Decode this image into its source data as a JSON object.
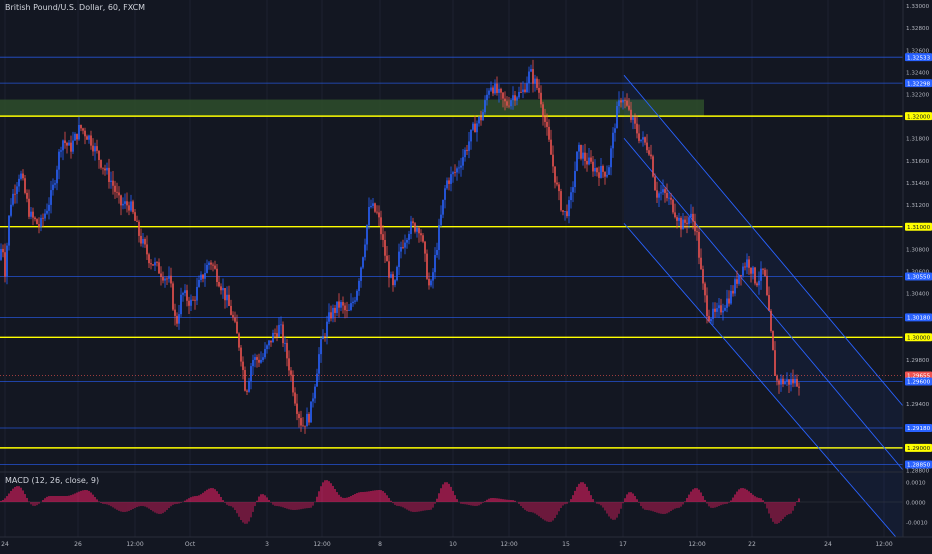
{
  "header": {
    "title": "British Pound/U.S. Dollar, 60, FXCM"
  },
  "macd": {
    "label": "MACD (12, 26, close, 9)"
  },
  "colors": {
    "background": "#131722",
    "up_candle": "#2962ff",
    "down_candle": "#ef5350",
    "horizontal_line": "#2962ff",
    "key_level": "#ffff00",
    "supply_zone": "#2e4d2a",
    "channel": "#2962ff",
    "macd_hist": "#e91e63",
    "current_price": "#ef5350"
  },
  "price_axis": {
    "labels": [
      "1.33000",
      "1.32800",
      "1.32600",
      "1.32400",
      "1.32200",
      "1.32000",
      "1.31800",
      "1.31600",
      "1.31400",
      "1.31200",
      "1.31000",
      "1.30800",
      "1.30600",
      "1.30400",
      "1.30200",
      "1.30000",
      "1.29800",
      "1.29600",
      "1.29400",
      "1.29200",
      "1.29000",
      "1.28800"
    ]
  },
  "price_tags": [
    {
      "text": "1.32533",
      "kind": "blue"
    },
    {
      "text": "1.32298",
      "kind": "blue"
    },
    {
      "text": "1.32000",
      "kind": "yellow"
    },
    {
      "text": "1.31000",
      "kind": "yellow"
    },
    {
      "text": "1.30550",
      "kind": "blue"
    },
    {
      "text": "1.30180",
      "kind": "blue"
    },
    {
      "text": "1.30000",
      "kind": "yellow"
    },
    {
      "text": "1.29655",
      "kind": "red"
    },
    {
      "text": "1.29600",
      "kind": "blue"
    },
    {
      "text": "1.29180",
      "kind": "blue"
    },
    {
      "text": "1.29000",
      "kind": "yellow"
    },
    {
      "text": "1.28850",
      "kind": "blue"
    }
  ],
  "macd_axis": {
    "labels": [
      "0.0010",
      "0.0000",
      "-0.0010"
    ]
  },
  "time_axis": {
    "labels": [
      "24",
      "26",
      "12:00",
      "Oct",
      "3",
      "12:00",
      "8",
      "10",
      "12:00",
      "15",
      "17",
      "12:00",
      "22",
      "24",
      "12:00"
    ]
  },
  "chart_data": {
    "type": "candlestick",
    "title": "British Pound/U.S. Dollar, 60, FXCM",
    "ylim": [
      1.288,
      1.3305
    ],
    "key_levels": [
      1.32,
      1.31,
      1.3,
      1.29
    ],
    "horizontal_lines": [
      1.32533,
      1.32298,
      1.3055,
      1.3018,
      1.296,
      1.2918,
      1.2885
    ],
    "supply_zone": [
      1.32,
      1.3215
    ],
    "descending_channel": true,
    "anchors": [
      [
        0,
        1.307
      ],
      [
        2,
        1.309
      ],
      [
        5,
        1.306
      ],
      [
        10,
        1.312
      ],
      [
        20,
        1.315
      ],
      [
        30,
        1.311
      ],
      [
        40,
        1.31
      ],
      [
        52,
        1.313
      ],
      [
        62,
        1.318
      ],
      [
        70,
        1.317
      ],
      [
        80,
        1.319
      ],
      [
        90,
        1.318
      ],
      [
        100,
        1.316
      ],
      [
        112,
        1.314
      ],
      [
        120,
        1.312
      ],
      [
        130,
        1.312
      ],
      [
        140,
        1.309
      ],
      [
        150,
        1.307
      ],
      [
        160,
        1.306
      ],
      [
        170,
        1.305
      ],
      [
        176,
        1.301
      ],
      [
        182,
        1.304
      ],
      [
        192,
        1.303
      ],
      [
        200,
        1.305
      ],
      [
        210,
        1.307
      ],
      [
        220,
        1.305
      ],
      [
        232,
        1.302
      ],
      [
        240,
        1.299
      ],
      [
        246,
        1.295
      ],
      [
        252,
        1.298
      ],
      [
        262,
        1.298
      ],
      [
        272,
        1.3
      ],
      [
        280,
        1.301
      ],
      [
        290,
        1.297
      ],
      [
        296,
        1.294
      ],
      [
        302,
        1.292
      ],
      [
        310,
        1.293
      ],
      [
        320,
        1.299
      ],
      [
        330,
        1.302
      ],
      [
        340,
        1.303
      ],
      [
        348,
        1.302
      ],
      [
        356,
        1.304
      ],
      [
        362,
        1.307
      ],
      [
        370,
        1.312
      ],
      [
        378,
        1.311
      ],
      [
        386,
        1.307
      ],
      [
        394,
        1.304
      ],
      [
        400,
        1.308
      ],
      [
        410,
        1.31
      ],
      [
        420,
        1.31
      ],
      [
        430,
        1.304
      ],
      [
        438,
        1.309
      ],
      [
        446,
        1.314
      ],
      [
        456,
        1.315
      ],
      [
        466,
        1.317
      ],
      [
        474,
        1.319
      ],
      [
        482,
        1.32
      ],
      [
        490,
        1.323
      ],
      [
        498,
        1.322
      ],
      [
        506,
        1.321
      ],
      [
        514,
        1.322
      ],
      [
        522,
        1.322
      ],
      [
        530,
        1.324
      ],
      [
        540,
        1.322
      ],
      [
        546,
        1.319
      ],
      [
        552,
        1.316
      ],
      [
        558,
        1.313
      ],
      [
        564,
        1.311
      ],
      [
        570,
        1.312
      ],
      [
        578,
        1.317
      ],
      [
        586,
        1.316
      ],
      [
        598,
        1.315
      ],
      [
        608,
        1.315
      ],
      [
        616,
        1.32
      ],
      [
        622,
        1.322
      ],
      [
        630,
        1.32
      ],
      [
        640,
        1.318
      ],
      [
        650,
        1.317
      ],
      [
        656,
        1.313
      ],
      [
        664,
        1.313
      ],
      [
        672,
        1.312
      ],
      [
        682,
        1.31
      ],
      [
        690,
        1.311
      ],
      [
        696,
        1.31
      ],
      [
        702,
        1.305
      ],
      [
        708,
        1.302
      ],
      [
        716,
        1.302
      ],
      [
        724,
        1.303
      ],
      [
        732,
        1.304
      ],
      [
        740,
        1.306
      ],
      [
        748,
        1.307
      ],
      [
        756,
        1.305
      ],
      [
        764,
        1.306
      ],
      [
        770,
        1.301
      ],
      [
        776,
        1.296
      ],
      [
        784,
        1.296
      ],
      [
        792,
        1.296
      ],
      [
        800,
        1.296
      ]
    ],
    "macd_hist": [
      [
        0,
        5e-05
      ],
      [
        18,
        0.0008
      ],
      [
        34,
        -0.0002
      ],
      [
        50,
        0.0003
      ],
      [
        66,
        0.0003
      ],
      [
        86,
        0.0006
      ],
      [
        104,
        -0.0001
      ],
      [
        124,
        -0.0005
      ],
      [
        142,
        -0.0002
      ],
      [
        160,
        -0.0006
      ],
      [
        176,
        -0.0001
      ],
      [
        196,
        0.0003
      ],
      [
        212,
        0.0007
      ],
      [
        230,
        -0.0002
      ],
      [
        246,
        -0.0011
      ],
      [
        262,
        0.0004
      ],
      [
        276,
        -0.0002
      ],
      [
        294,
        -0.0004
      ],
      [
        310,
        -0.0003
      ],
      [
        326,
        0.0011
      ],
      [
        344,
        0.0002
      ],
      [
        362,
        0.0005
      ],
      [
        380,
        0.0006
      ],
      [
        398,
        -0.0002
      ],
      [
        414,
        -0.0005
      ],
      [
        430,
        -0.0004
      ],
      [
        446,
        0.001
      ],
      [
        462,
        -0.0001
      ],
      [
        476,
        -0.0002
      ],
      [
        492,
        0.0002
      ],
      [
        512,
        0.0001
      ],
      [
        530,
        -0.0005
      ],
      [
        550,
        -0.001
      ],
      [
        566,
        -0.0001
      ],
      [
        582,
        0.001
      ],
      [
        598,
        -0.0001
      ],
      [
        614,
        -0.0009
      ],
      [
        630,
        0.0005
      ],
      [
        646,
        -0.0004
      ],
      [
        664,
        -0.0006
      ],
      [
        678,
        -0.0003
      ],
      [
        696,
        0.0007
      ],
      [
        712,
        -0.0003
      ],
      [
        726,
        -0.0001
      ],
      [
        742,
        0.0007
      ],
      [
        760,
        0.0002
      ],
      [
        776,
        -0.0011
      ],
      [
        790,
        -0.0006
      ],
      [
        800,
        0.0002
      ]
    ]
  }
}
